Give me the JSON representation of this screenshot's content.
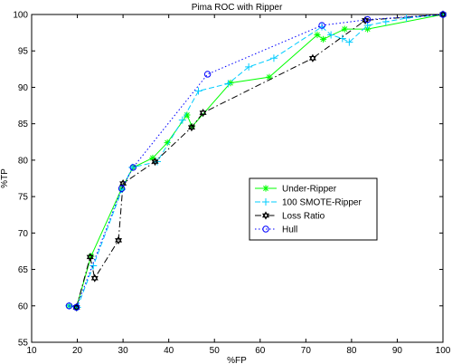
{
  "chart_data": {
    "type": "line",
    "title": "Pima ROC with Ripper",
    "xlabel": "%FP",
    "ylabel": "%TP",
    "xlim": [
      10,
      100
    ],
    "ylim": [
      55,
      100
    ],
    "xticks": [
      10,
      20,
      30,
      40,
      50,
      60,
      70,
      80,
      90,
      100
    ],
    "yticks": [
      55,
      60,
      65,
      70,
      75,
      80,
      85,
      90,
      95,
      100
    ],
    "grid": false,
    "legend_position": "center-right",
    "series": [
      {
        "name": "Under-Ripper",
        "color": "#00ff00",
        "line": "solid",
        "marker": "star",
        "x": [
          18.2,
          19.8,
          23.0,
          29.7,
          32.2,
          36.5,
          39.7,
          44.0,
          45.1,
          53.5,
          62.0,
          72.5,
          73.8,
          78.5,
          83.5,
          100
        ],
        "y": [
          60.0,
          59.8,
          66.8,
          76.1,
          79.0,
          80.3,
          82.4,
          86.2,
          84.6,
          90.6,
          91.4,
          97.2,
          96.6,
          98.0,
          98.0,
          100
        ]
      },
      {
        "name": "100 SMOTE-Ripper",
        "color": "#00ccff",
        "line": "dashed",
        "marker": "plus",
        "x": [
          18.2,
          20.0,
          23.5,
          29.8,
          32.0,
          37.5,
          43.0,
          46.5,
          53.0,
          57.5,
          63.0,
          73.5,
          75.5,
          78.0,
          79.5,
          83.5,
          87.5,
          92.0,
          100
        ],
        "y": [
          60.0,
          59.8,
          65.5,
          76.0,
          79.0,
          79.8,
          85.5,
          89.5,
          90.5,
          92.8,
          94.0,
          98.3,
          97.2,
          96.7,
          96.2,
          98.5,
          99.0,
          99.5,
          100
        ]
      },
      {
        "name": "Loss Ratio",
        "color": "#000000",
        "line": "dashdot",
        "marker": "hexagram",
        "x": [
          19.8,
          22.8,
          23.8,
          29.0,
          30.0,
          37.0,
          45.0,
          47.5,
          71.5,
          83.0,
          100
        ],
        "y": [
          59.8,
          66.7,
          63.8,
          69.0,
          76.8,
          79.8,
          84.5,
          86.5,
          94.0,
          99.2,
          100
        ]
      },
      {
        "name": "Hull",
        "color": "#0000ff",
        "line": "dotted",
        "marker": "circle",
        "x": [
          18.2,
          19.8,
          29.7,
          32.2,
          48.5,
          73.5,
          83.5,
          100
        ],
        "y": [
          60.0,
          59.8,
          76.1,
          79.0,
          91.8,
          98.5,
          99.3,
          100
        ]
      }
    ]
  }
}
